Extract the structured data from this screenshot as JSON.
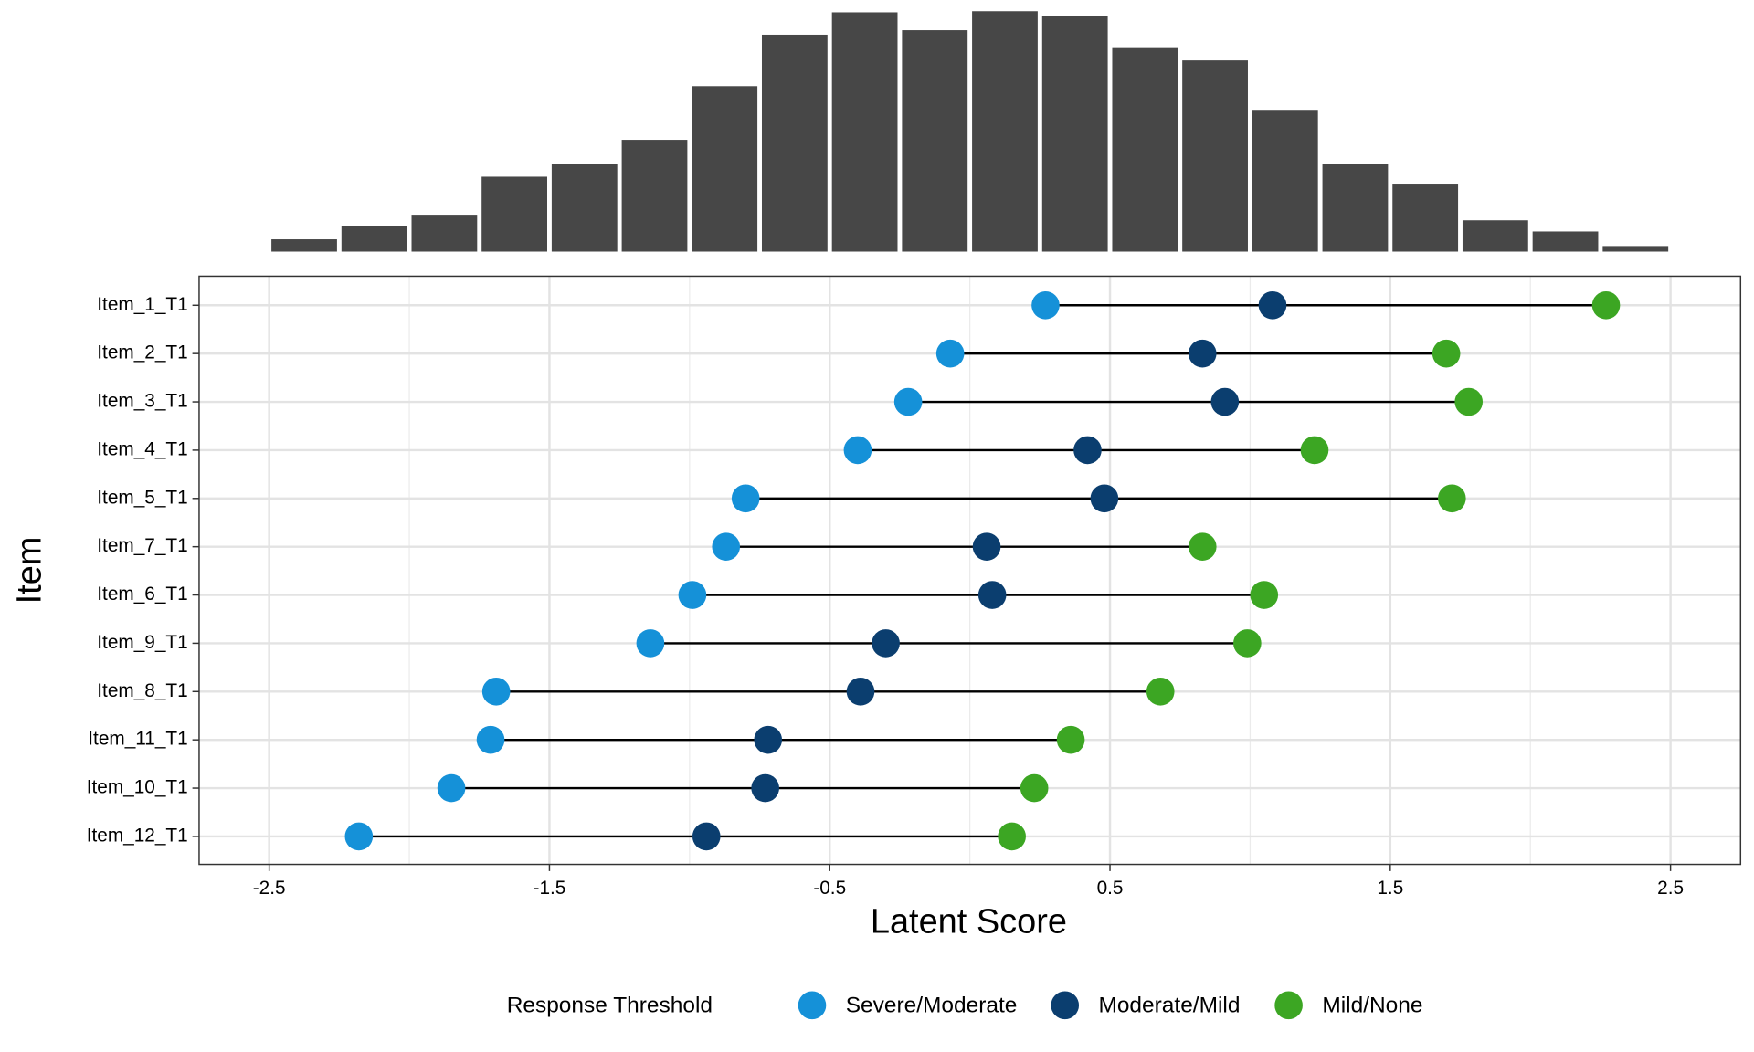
{
  "chart_data": [
    {
      "type": "histogram",
      "bins": [
        -2.5,
        -2.25,
        -2,
        -1.75,
        -1.5,
        -1.25,
        -1,
        -0.75,
        -0.5,
        -0.25,
        0,
        0.25,
        0.5,
        0.75,
        1,
        1.25,
        1.5,
        1.75,
        2,
        2.25,
        2.5
      ],
      "values": [
        11,
        23,
        33,
        67,
        78,
        100,
        148,
        194,
        214,
        198,
        215,
        211,
        182,
        171,
        126,
        78,
        60,
        28,
        18,
        5
      ],
      "color": "#474747",
      "xlim": [
        -2.75,
        2.75
      ],
      "ylim": [
        0,
        220
      ]
    },
    {
      "type": "dumbbell",
      "categories": [
        "Item_1_T1",
        "Item_2_T1",
        "Item_3_T1",
        "Item_4_T1",
        "Item_5_T1",
        "Item_7_T1",
        "Item_6_T1",
        "Item_9_T1",
        "Item_8_T1",
        "Item_11_T1",
        "Item_10_T1",
        "Item_12_T1"
      ],
      "series": [
        {
          "name": "Severe/Moderate",
          "color": "#1591d8",
          "values": [
            0.27,
            -0.07,
            -0.22,
            -0.4,
            -0.8,
            -0.87,
            -0.99,
            -1.14,
            -1.69,
            -1.71,
            -1.85,
            -2.18
          ]
        },
        {
          "name": "Moderate/Mild",
          "color": "#0b3e6f",
          "values": [
            1.08,
            0.83,
            0.91,
            0.42,
            0.48,
            0.06,
            0.08,
            -0.3,
            -0.39,
            -0.72,
            -0.73,
            -0.94
          ]
        },
        {
          "name": "Mild/None",
          "color": "#3ca623",
          "values": [
            2.27,
            1.7,
            1.78,
            1.23,
            1.72,
            0.83,
            1.05,
            0.99,
            0.68,
            0.36,
            0.23,
            0.15
          ]
        }
      ],
      "line_color": "#000000",
      "xlim": [
        -2.75,
        2.75
      ],
      "xticks": [
        -2.5,
        -1.5,
        -0.5,
        0.5,
        1.5,
        2.5
      ],
      "x_minor_grid": [
        -2,
        -1,
        0,
        1,
        2
      ],
      "grid": true,
      "x_label": "Latent Score",
      "y_label": "Item",
      "legend_title": "Response Threshold",
      "legend_position": "bottom"
    }
  ]
}
